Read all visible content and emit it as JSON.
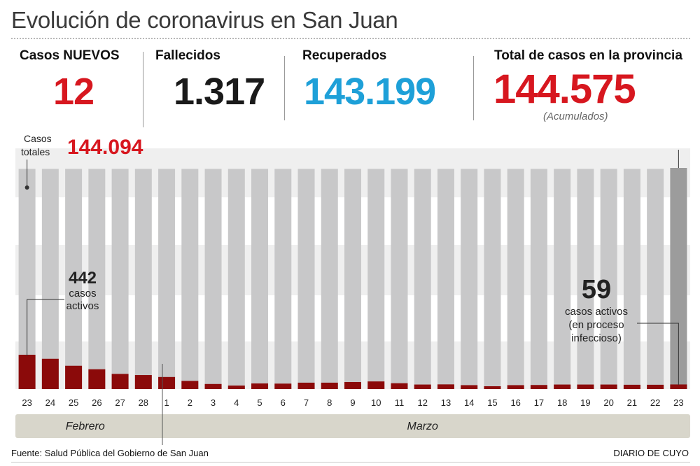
{
  "header": {
    "title": "Evolución de coronavirus en San Juan"
  },
  "stats": {
    "new_cases": {
      "label": "Casos NUEVOS",
      "value": "12",
      "color": "#d7171f"
    },
    "deaths": {
      "label": "Fallecidos",
      "value": "1.317",
      "color": "#1a1a1a"
    },
    "recovered": {
      "label": "Recuperados",
      "value": "143.199",
      "color": "#1ea0d8"
    },
    "total": {
      "label": "Total de casos en la provincia",
      "value": "144.575",
      "note": "(Acumulados)",
      "color": "#d7171f"
    }
  },
  "colors": {
    "background_band": "#efefef",
    "bar_total": "#c8c8c9",
    "bar_total_last": "#9c9c9c",
    "bar_active": "#8b0a0a",
    "month_band": "#d8d6cb"
  },
  "chart_data": {
    "type": "bar",
    "categories": [
      "23",
      "24",
      "25",
      "26",
      "27",
      "28",
      "1",
      "2",
      "3",
      "4",
      "5",
      "6",
      "7",
      "8",
      "9",
      "10",
      "11",
      "12",
      "13",
      "14",
      "15",
      "16",
      "17",
      "18",
      "19",
      "20",
      "21",
      "22",
      "23"
    ],
    "series": [
      {
        "name": "Casos totales",
        "values": [
          144094,
          144094,
          144094,
          144094,
          144094,
          144094,
          144094,
          144094,
          144094,
          144094,
          144094,
          144094,
          144094,
          144094,
          144094,
          144094,
          144094,
          144094,
          144094,
          144094,
          144094,
          144094,
          144094,
          144094,
          144094,
          144094,
          144094,
          144094,
          144575
        ]
      },
      {
        "name": "casos activos",
        "values": [
          442,
          390,
          300,
          255,
          195,
          180,
          155,
          105,
          65,
          45,
          72,
          70,
          82,
          82,
          90,
          98,
          75,
          58,
          60,
          50,
          32,
          50,
          52,
          58,
          58,
          58,
          55,
          55,
          59
        ]
      }
    ],
    "months": [
      {
        "label": "Febrero",
        "from": 0,
        "to": 5
      },
      {
        "label": "Marzo",
        "from": 6,
        "to": 28
      }
    ],
    "annotations": {
      "total_label_line1": "Casos",
      "total_label_line2": "totales",
      "total_value": "144.094",
      "first_active_value": "442",
      "first_active_line1": "casos",
      "first_active_line2": "activos",
      "last_active_value": "59",
      "last_active_line1": "casos activos",
      "last_active_line2": "(en proceso",
      "last_active_line3": "infeccioso)"
    }
  },
  "footer": {
    "source": "Fuente: Salud Pública del Gobierno de San Juan",
    "brand": "DIARIO DE CUYO"
  }
}
